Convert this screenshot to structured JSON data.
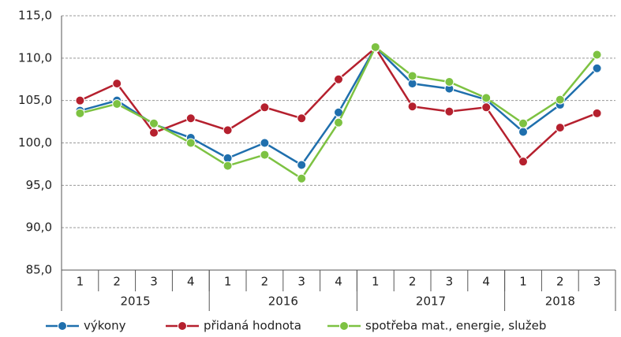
{
  "chart_data": {
    "type": "line",
    "categories": [
      "1",
      "2",
      "3",
      "4",
      "1",
      "2",
      "3",
      "4",
      "1",
      "2",
      "3",
      "4",
      "1",
      "2",
      "3"
    ],
    "groups": [
      {
        "label": "2015",
        "size": 4
      },
      {
        "label": "2016",
        "size": 4
      },
      {
        "label": "2017",
        "size": 4
      },
      {
        "label": "2018",
        "size": 3
      }
    ],
    "series": [
      {
        "name": "výkony",
        "color": "#1f6fad",
        "values": [
          103.8,
          105.0,
          102.2,
          100.6,
          98.2,
          100.0,
          97.4,
          103.6,
          111.3,
          107.0,
          106.4,
          105.1,
          101.3,
          104.5,
          108.8
        ]
      },
      {
        "name": "přidaná hodnota",
        "color": "#b5202e",
        "values": [
          105.0,
          107.0,
          101.2,
          102.9,
          101.5,
          104.2,
          102.9,
          107.5,
          111.2,
          104.3,
          103.7,
          104.2,
          97.8,
          101.8,
          103.5
        ]
      },
      {
        "name": "spotřeba mat., energie, služeb",
        "color": "#7dc242",
        "values": [
          103.5,
          104.6,
          102.3,
          100.0,
          97.3,
          98.6,
          95.8,
          102.4,
          111.3,
          107.9,
          107.2,
          105.3,
          102.3,
          105.1,
          110.4
        ]
      }
    ],
    "ylim": [
      85,
      115
    ],
    "yticks": [
      {
        "value": 85,
        "label": "85,0"
      },
      {
        "value": 90,
        "label": "90,0"
      },
      {
        "value": 95,
        "label": "95,0"
      },
      {
        "value": 100,
        "label": "100,0"
      },
      {
        "value": 105,
        "label": "105,0"
      },
      {
        "value": 110,
        "label": "110,0"
      },
      {
        "value": 115,
        "label": "115,0"
      }
    ],
    "grid": true,
    "legend": "bottom"
  }
}
